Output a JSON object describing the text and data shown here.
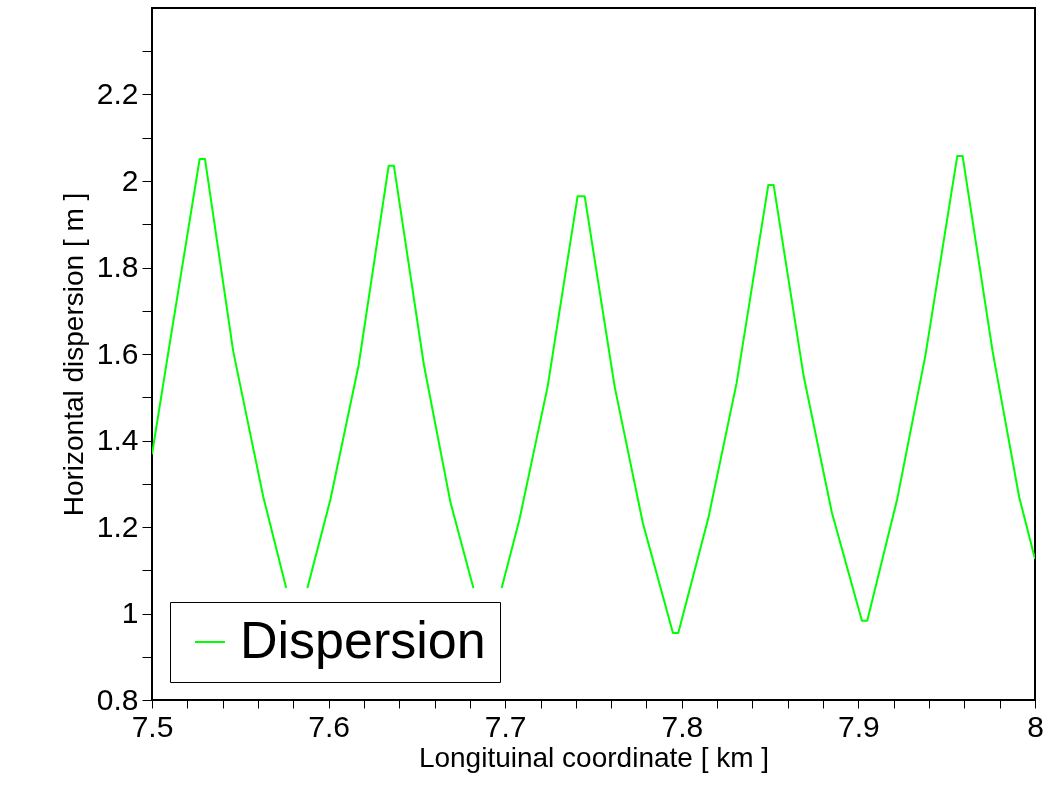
{
  "chart_data": {
    "type": "line",
    "xlabel": "Longituinal coordinate [ km ]",
    "ylabel": "Horizontal dispersion [ m ]",
    "x": [
      7.5,
      7.509,
      7.527,
      7.53,
      7.546,
      7.563,
      7.576,
      7.582,
      7.588,
      7.601,
      7.617,
      7.634,
      7.637,
      7.654,
      7.669,
      7.682,
      7.69,
      7.698,
      7.708,
      7.724,
      7.741,
      7.745,
      7.762,
      7.778,
      7.795,
      7.798,
      7.815,
      7.831,
      7.849,
      7.852,
      7.869,
      7.885,
      7.902,
      7.905,
      7.922,
      7.938,
      7.956,
      7.959,
      7.976,
      7.991,
      8.0
    ],
    "series": [
      {
        "name": "Dispersion",
        "color": "#00ff00",
        "values": [
          1.368,
          1.598,
          2.051,
          2.051,
          1.606,
          1.27,
          1.059,
          null,
          1.059,
          1.263,
          1.574,
          2.035,
          2.035,
          1.574,
          1.257,
          1.059,
          null,
          1.059,
          1.216,
          1.524,
          1.965,
          1.965,
          1.524,
          1.208,
          0.955,
          0.955,
          1.22,
          1.532,
          1.991,
          1.991,
          1.549,
          1.233,
          0.983,
          0.983,
          1.265,
          1.598,
          2.058,
          2.058,
          1.606,
          1.27,
          1.126
        ]
      }
    ],
    "xlim": [
      7.5,
      8.0
    ],
    "ylim": [
      0.8,
      2.4
    ],
    "xticks": [
      7.5,
      {
        "value": 7.52,
        "label": null
      },
      {
        "value": 7.54,
        "label": null
      },
      {
        "value": 7.56,
        "label": null
      },
      {
        "value": 7.58,
        "label": null
      },
      7.6,
      {
        "value": 7.62,
        "label": null
      },
      {
        "value": 7.64,
        "label": null
      },
      {
        "value": 7.66,
        "label": null
      },
      {
        "value": 7.68,
        "label": null
      },
      7.7,
      {
        "value": 7.72,
        "label": null
      },
      {
        "value": 7.74,
        "label": null
      },
      {
        "value": 7.76,
        "label": null
      },
      {
        "value": 7.78,
        "label": null
      },
      7.8,
      {
        "value": 7.82,
        "label": null
      },
      {
        "value": 7.84,
        "label": null
      },
      {
        "value": 7.86,
        "label": null
      },
      {
        "value": 7.88,
        "label": null
      },
      7.9,
      {
        "value": 7.92,
        "label": null
      },
      {
        "value": 7.94,
        "label": null
      },
      {
        "value": 7.96,
        "label": null
      },
      {
        "value": 7.98,
        "label": null
      },
      8
    ],
    "yticks": [
      0.8,
      {
        "value": 0.9,
        "label": null
      },
      1,
      {
        "value": 1.1,
        "label": null
      },
      1.2,
      {
        "value": 1.3,
        "label": null
      },
      1.4,
      {
        "value": 1.5,
        "label": null
      },
      1.6,
      {
        "value": 1.7,
        "label": null
      },
      1.8,
      {
        "value": 1.9,
        "label": null
      },
      2,
      {
        "value": 2.1,
        "label": null
      },
      2.2,
      {
        "value": 2.3,
        "label": null
      }
    ],
    "legend": "bottom left",
    "grid": false,
    "marker": "none",
    "line_style": "solid"
  }
}
